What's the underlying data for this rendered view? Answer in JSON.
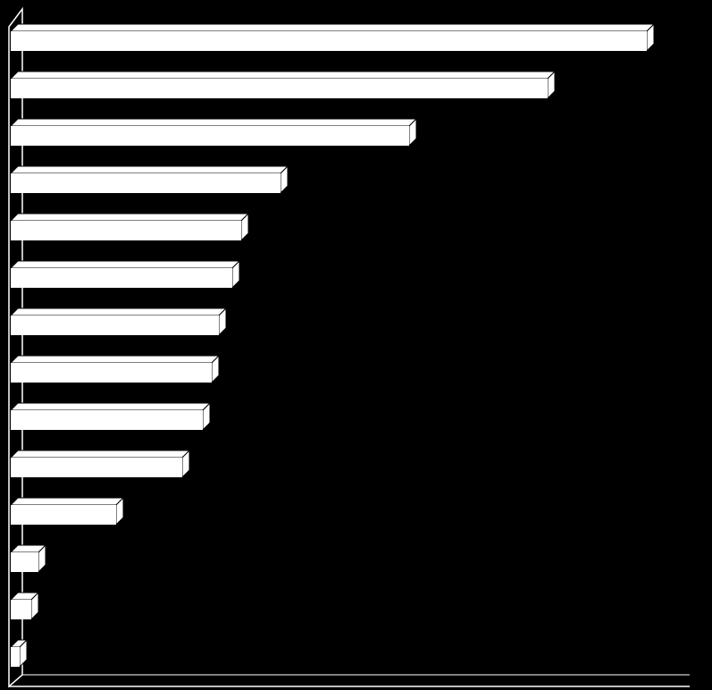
{
  "chart_data": {
    "type": "bar",
    "orientation": "horizontal",
    "categories": [
      null,
      null,
      null,
      null,
      null,
      null,
      null,
      null,
      null,
      null,
      null,
      null,
      null,
      null
    ],
    "values": [
      712,
      601,
      446,
      302,
      258,
      248,
      233,
      225,
      215,
      192,
      118,
      31,
      23,
      10
    ],
    "color": "#ffffff",
    "xlim": [
      0,
      760
    ]
  }
}
